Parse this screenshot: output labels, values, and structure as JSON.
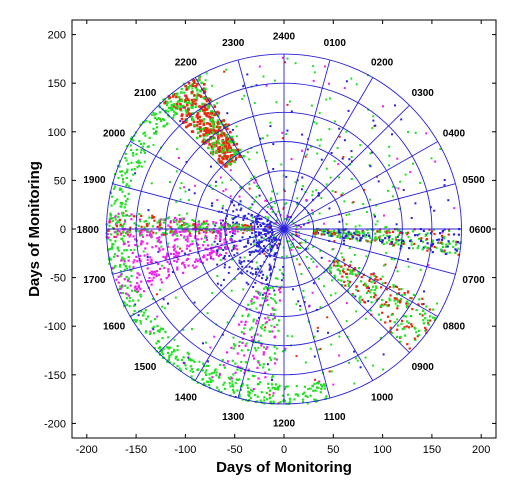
{
  "chart_data": {
    "type": "scatter",
    "projection": "polar",
    "title": "",
    "xlabel": "Days of Monitoring",
    "ylabel": "Days of Monitoring",
    "xlim": [
      -215,
      215
    ],
    "ylim": [
      -215,
      215
    ],
    "x_ticks": [
      "-200",
      "-150",
      "-100",
      "-50",
      "0",
      "50",
      "100",
      "150",
      "200"
    ],
    "y_ticks": [
      "200",
      "150",
      "100",
      "50",
      "0",
      "-50",
      "-100",
      "-150",
      "-200"
    ],
    "radial_rings_days": [
      30,
      60,
      90,
      120,
      150,
      180
    ],
    "hour_labels": [
      "2400",
      "0100",
      "0200",
      "0300",
      "0400",
      "0500",
      "0600",
      "0700",
      "0800",
      "0900",
      "1000",
      "1100",
      "1200",
      "1300",
      "1400",
      "1500",
      "1600",
      "1700",
      "1800",
      "1900",
      "2000",
      "2100",
      "2200",
      "2300"
    ],
    "series_colors": {
      "green": "#22e022",
      "red": "#e82a10",
      "magenta": "#ee22ee",
      "blue": "#2a22d8"
    },
    "grid_color": "#2a22d8",
    "grid": true
  }
}
